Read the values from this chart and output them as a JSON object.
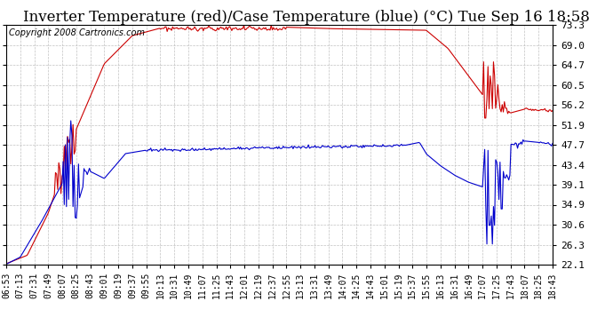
{
  "title": "Inverter Temperature (red)/Case Temperature (blue) (°C) Tue Sep 16 18:58",
  "copyright": "Copyright 2008 Cartronics.com",
  "y_ticks": [
    22.1,
    26.3,
    30.6,
    34.9,
    39.1,
    43.4,
    47.7,
    51.9,
    56.2,
    60.5,
    64.7,
    69.0,
    73.3
  ],
  "y_min": 22.1,
  "y_max": 73.3,
  "background_color": "#ffffff",
  "plot_bg_color": "#ffffff",
  "grid_color": "#bbbbbb",
  "red_color": "#cc0000",
  "blue_color": "#0000cc",
  "title_fontsize": 12,
  "copyright_fontsize": 7,
  "tick_fontsize": 8,
  "x_tick_labels": [
    "06:53",
    "07:13",
    "07:31",
    "07:49",
    "08:07",
    "08:25",
    "08:43",
    "09:01",
    "09:19",
    "09:37",
    "09:55",
    "10:13",
    "10:31",
    "10:49",
    "11:07",
    "11:25",
    "11:43",
    "12:01",
    "12:19",
    "12:37",
    "12:55",
    "13:13",
    "13:31",
    "13:49",
    "14:07",
    "14:25",
    "14:43",
    "15:01",
    "15:19",
    "15:37",
    "15:55",
    "16:13",
    "16:31",
    "16:49",
    "17:07",
    "17:25",
    "17:43",
    "18:07",
    "18:25",
    "18:43"
  ]
}
